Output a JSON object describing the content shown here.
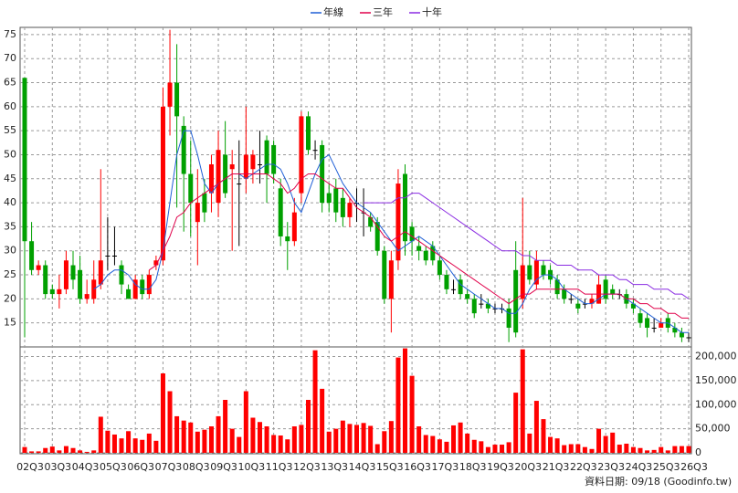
{
  "chart_data": {
    "type": "candlestick",
    "grid": true,
    "up_color": "#ff0000",
    "down_color": "#00a000",
    "ylim": [
      10,
      76.5
    ],
    "yticks": [
      15,
      20,
      25,
      30,
      35,
      40,
      45,
      50,
      55,
      60,
      65,
      70,
      75
    ],
    "footnote": "資料日期: 09/18 (Goodinfo.tw)",
    "categories": [
      "02Q3",
      null,
      null,
      null,
      "03Q3",
      null,
      null,
      null,
      "04Q3",
      null,
      null,
      null,
      "05Q3",
      null,
      null,
      null,
      "06Q3",
      null,
      null,
      null,
      "07Q3",
      null,
      null,
      null,
      "08Q3",
      null,
      null,
      null,
      "09Q3",
      null,
      null,
      null,
      "10Q3",
      null,
      null,
      null,
      "11Q3",
      null,
      null,
      null,
      "12Q3",
      null,
      null,
      null,
      "13Q3",
      null,
      null,
      null,
      "14Q3",
      null,
      null,
      null,
      "15Q3",
      null,
      null,
      null,
      "16Q3",
      null,
      null,
      null,
      "17Q3",
      null,
      null,
      null,
      "18Q3",
      null,
      null,
      null,
      "19Q3",
      null,
      null,
      null,
      "20Q3",
      null,
      null,
      null,
      "21Q3",
      null,
      null,
      null,
      "22Q3",
      null,
      null,
      null,
      "23Q3",
      null,
      null,
      null,
      "24Q3",
      null,
      null,
      null,
      "25Q3",
      null,
      null,
      null,
      "26Q3"
    ],
    "open": [
      66,
      32,
      26,
      27,
      22,
      21,
      22,
      27,
      26,
      20,
      20,
      23,
      29,
      29,
      27,
      22,
      20,
      24,
      21,
      27,
      28,
      60,
      65,
      56,
      46,
      36,
      42,
      42,
      40,
      50,
      47,
      44,
      45,
      47,
      48,
      53,
      52,
      43,
      33,
      32,
      42,
      58,
      51,
      52,
      42,
      43,
      41,
      37,
      40,
      38,
      37,
      36,
      30,
      20,
      28,
      46,
      35,
      31,
      30,
      31,
      28,
      25,
      22,
      24,
      21,
      20,
      19,
      19,
      18,
      18,
      18,
      26,
      20,
      27,
      23,
      27,
      26,
      24,
      22,
      20,
      19,
      19,
      19,
      19,
      24,
      22,
      21,
      21,
      19,
      17,
      16,
      14,
      14,
      16,
      14,
      13,
      12
    ],
    "high": [
      66,
      36,
      28,
      28,
      23,
      25,
      30,
      30,
      29,
      24,
      28,
      47,
      37,
      35,
      28,
      23,
      25,
      25,
      26,
      29,
      64,
      76,
      73,
      58,
      53,
      47,
      45,
      50,
      55,
      57,
      51,
      53,
      60,
      51,
      55,
      54,
      53,
      45,
      36,
      41,
      59,
      59,
      53,
      53,
      44,
      45,
      43,
      41,
      43,
      43,
      38,
      37,
      31,
      30,
      47,
      48,
      36,
      33,
      31,
      32,
      29,
      26,
      24,
      25,
      22,
      21,
      21,
      20,
      19,
      19,
      20,
      32,
      41,
      30,
      30,
      28,
      27,
      25,
      23,
      21,
      20,
      20,
      21,
      25,
      25,
      23,
      22,
      22,
      20,
      18,
      17,
      16,
      16,
      17,
      15,
      14,
      13
    ],
    "low": [
      12,
      25,
      25,
      20,
      20,
      18,
      21,
      22,
      19,
      19,
      19,
      22,
      26,
      27,
      21,
      20,
      20,
      20,
      20,
      26,
      27,
      54,
      39,
      34,
      33,
      27,
      36,
      38,
      37,
      41,
      30,
      31,
      42,
      44,
      44,
      40,
      44,
      31,
      26,
      31,
      40,
      50,
      49,
      38,
      38,
      36,
      35,
      35,
      36,
      33,
      34,
      29,
      19,
      13,
      26,
      29,
      29,
      28,
      27,
      27,
      24,
      21,
      21,
      20,
      19,
      16,
      18,
      17,
      17,
      17,
      11,
      12,
      18,
      23,
      22,
      24,
      23,
      20,
      19,
      19,
      17,
      18,
      18,
      19,
      19,
      20,
      20,
      18,
      17,
      14,
      12,
      13,
      14,
      13,
      12,
      11,
      11
    ],
    "close": [
      32,
      26,
      27,
      21,
      21,
      22,
      28,
      24,
      20,
      21,
      24,
      28,
      29,
      29,
      23,
      20,
      24,
      21,
      25,
      28,
      60,
      65,
      58,
      46,
      40,
      40,
      38,
      48,
      51,
      42,
      48,
      44,
      50,
      50,
      48,
      46,
      46,
      33,
      32,
      38,
      58,
      51,
      51,
      40,
      40,
      38,
      37,
      40,
      40,
      38,
      35,
      30,
      20,
      28,
      44,
      32,
      32,
      30,
      28,
      28,
      25,
      22,
      22,
      21,
      20,
      17,
      19,
      18,
      18,
      18,
      14,
      13,
      27,
      24,
      28,
      25,
      24,
      21,
      20,
      20,
      18,
      19,
      20,
      23,
      20,
      21,
      21,
      19,
      18,
      15,
      14,
      14,
      15,
      14,
      13,
      12,
      12
    ],
    "series": [
      {
        "name": "年線",
        "color": "#1f5fd6",
        "values": [
          null,
          null,
          null,
          null,
          null,
          null,
          null,
          null,
          null,
          null,
          22,
          23,
          25,
          26,
          26,
          25,
          23,
          22,
          22,
          24,
          30,
          40,
          50,
          55,
          55,
          50,
          44,
          42,
          44,
          45,
          46,
          46,
          45,
          46,
          47,
          48,
          48,
          47,
          44,
          40,
          38,
          42,
          46,
          49,
          50,
          47,
          44,
          42,
          40,
          39,
          38,
          36,
          34,
          32,
          30,
          31,
          32,
          33,
          32,
          31,
          29,
          27,
          25,
          23,
          22,
          21,
          20,
          19,
          18,
          18,
          17,
          17,
          19,
          22,
          24,
          25,
          25,
          24,
          22,
          21,
          20,
          19,
          19,
          20,
          21,
          21,
          21,
          20,
          19,
          18,
          17,
          16,
          15,
          15,
          14,
          13,
          13
        ]
      },
      {
        "name": "三年",
        "color": "#e0004a",
        "values": [
          null,
          null,
          null,
          null,
          null,
          null,
          null,
          null,
          null,
          null,
          null,
          null,
          null,
          null,
          null,
          null,
          null,
          null,
          26,
          27,
          30,
          33,
          37,
          38,
          40,
          41,
          42,
          43,
          44,
          45,
          46,
          46,
          46,
          46,
          46,
          46,
          45,
          44,
          42,
          43,
          45,
          46,
          46,
          45,
          44,
          43,
          43,
          41,
          39,
          38,
          37,
          35,
          33,
          32,
          33,
          34,
          33,
          32,
          31,
          30,
          29,
          28,
          27,
          26,
          25,
          24,
          23,
          22,
          21,
          20,
          19,
          20,
          21,
          21,
          22,
          22,
          22,
          22,
          22,
          22,
          22,
          21,
          21,
          21,
          21,
          21,
          21,
          20,
          20,
          19,
          19,
          18,
          18,
          17,
          17,
          16,
          16
        ]
      },
      {
        "name": "十年",
        "color": "#8a2be2",
        "values": [
          null,
          null,
          null,
          null,
          null,
          null,
          null,
          null,
          null,
          null,
          null,
          null,
          null,
          null,
          null,
          null,
          null,
          null,
          null,
          null,
          null,
          null,
          null,
          null,
          null,
          null,
          null,
          null,
          null,
          null,
          null,
          null,
          null,
          null,
          null,
          null,
          null,
          null,
          null,
          null,
          null,
          null,
          null,
          null,
          null,
          null,
          null,
          null,
          null,
          40,
          40,
          40,
          40,
          40,
          41,
          41,
          42,
          42,
          41,
          40,
          39,
          38,
          37,
          36,
          35,
          34,
          33,
          32,
          31,
          30,
          30,
          30,
          29,
          29,
          28,
          28,
          28,
          27,
          27,
          27,
          26,
          26,
          26,
          25,
          25,
          25,
          24,
          24,
          23,
          23,
          23,
          22,
          22,
          22,
          21,
          21,
          20
        ]
      }
    ],
    "volume": {
      "color": "#ff0000",
      "ylim": [
        0,
        220000
      ],
      "yticks": [
        0,
        {
          "value": 50000,
          "label": "50,000"
        },
        {
          "value": 100000,
          "label": "100,000"
        },
        {
          "value": 150000,
          "label": "150,000"
        },
        {
          "value": 200000,
          "label": "200,000"
        }
      ],
      "values": [
        12000,
        3000,
        3000,
        10000,
        13000,
        5000,
        14000,
        10000,
        5000,
        2000,
        5000,
        75000,
        46000,
        38000,
        30000,
        45000,
        30000,
        27000,
        40000,
        25000,
        165000,
        128000,
        76000,
        67000,
        63000,
        44000,
        48000,
        55000,
        76000,
        110000,
        50000,
        33000,
        128000,
        73000,
        64000,
        55000,
        37000,
        36000,
        28000,
        55000,
        58000,
        110000,
        213000,
        133000,
        44000,
        50000,
        67000,
        60000,
        58000,
        62000,
        56000,
        18000,
        45000,
        66000,
        198000,
        217000,
        160000,
        55000,
        37000,
        35000,
        28000,
        23000,
        57000,
        63000,
        40000,
        27000,
        24000,
        12000,
        17000,
        17000,
        22000,
        125000,
        215000,
        40000,
        108000,
        70000,
        33000,
        30000,
        16000,
        18000,
        18000,
        12000,
        8000,
        50000,
        35000,
        42000,
        17000,
        19000,
        12000,
        10000,
        5000,
        6000,
        12000,
        5000,
        14000,
        14000,
        14000
      ]
    }
  }
}
